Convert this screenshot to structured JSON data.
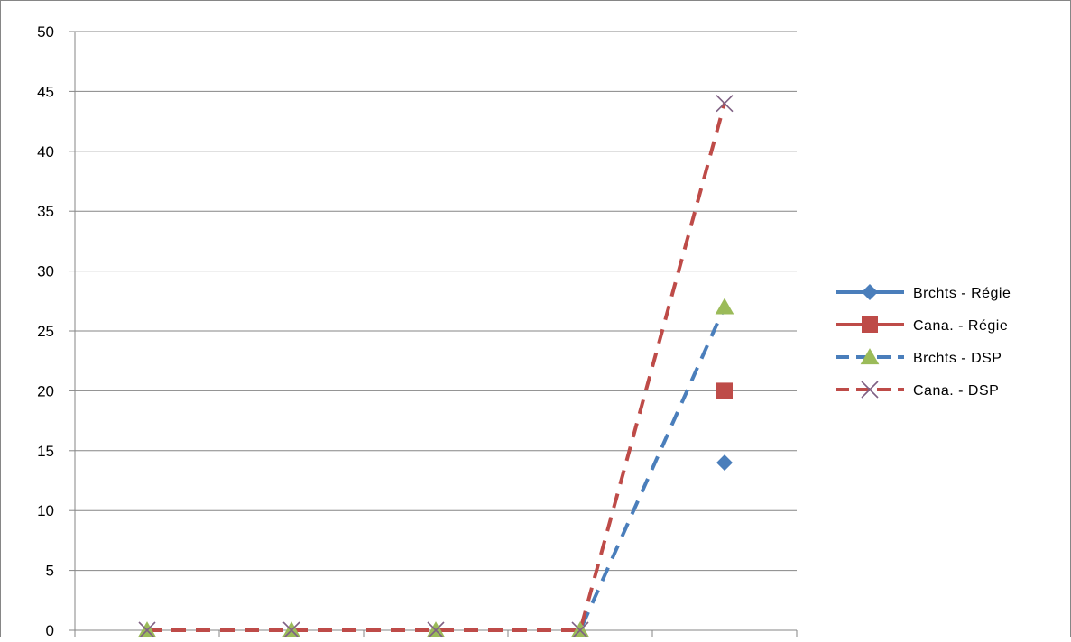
{
  "chart_data": {
    "type": "line",
    "title": "",
    "xlabel": "",
    "ylabel": "",
    "x": [
      1,
      2,
      3,
      4,
      5
    ],
    "xlim": [
      0.5,
      5.5
    ],
    "ylim": [
      0,
      50
    ],
    "yticks": [
      0,
      5,
      10,
      15,
      20,
      25,
      30,
      35,
      40,
      45,
      50
    ],
    "grid": "horizontal",
    "legend_position": "right",
    "series": [
      {
        "name": "Brchts - Régie",
        "values": [
          null,
          null,
          null,
          null,
          14
        ],
        "color": "#4a7ebb",
        "dash": "solid",
        "marker": "diamond"
      },
      {
        "name": "Cana. - Régie",
        "values": [
          null,
          null,
          null,
          null,
          20
        ],
        "color": "#be4b48",
        "dash": "solid",
        "marker": "square"
      },
      {
        "name": "Brchts - DSP",
        "values": [
          0,
          0,
          0,
          0,
          27
        ],
        "color": "#4a7ebb",
        "dash": "dashed",
        "marker": "triangle",
        "marker_color": "#9bbb59"
      },
      {
        "name": "Cana. - DSP",
        "values": [
          0,
          0,
          0,
          0,
          44
        ],
        "color": "#be4b48",
        "dash": "dashed",
        "marker": "x",
        "marker_color": "#7f6084"
      }
    ]
  }
}
